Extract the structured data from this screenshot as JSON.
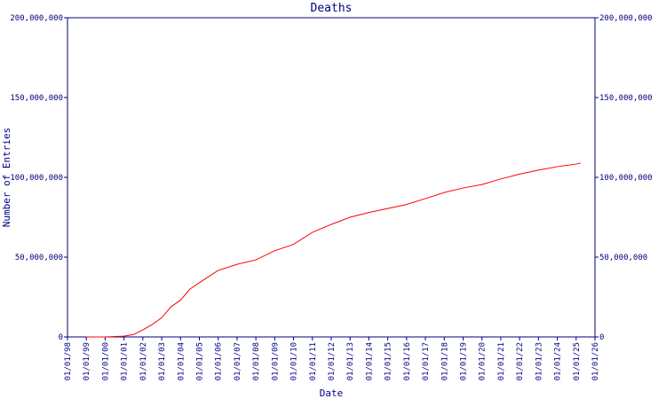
{
  "chart_data": {
    "type": "line",
    "title": "Deaths",
    "xlabel": "Date",
    "ylabel": "Number of Entries",
    "xlim": [
      "01/01/98",
      "01/01/26"
    ],
    "xticks": [
      "01/01/98",
      "01/01/99",
      "01/01/00",
      "01/01/01",
      "01/01/02",
      "01/01/03",
      "01/01/04",
      "01/01/05",
      "01/01/06",
      "01/01/07",
      "01/01/08",
      "01/01/09",
      "01/01/10",
      "01/01/11",
      "01/01/12",
      "01/01/13",
      "01/01/14",
      "01/01/15",
      "01/01/16",
      "01/01/17",
      "01/01/18",
      "01/01/19",
      "01/01/20",
      "01/01/21",
      "01/01/22",
      "01/01/23",
      "01/01/24",
      "01/01/25",
      "01/01/26"
    ],
    "ylim": [
      0,
      200000000
    ],
    "yticks": [
      0,
      {
        "value": 50000000,
        "label": "50,000,000"
      },
      {
        "value": 100000000,
        "label": "100,000,000"
      },
      {
        "value": 150000000,
        "label": "150,000,000"
      },
      {
        "value": 200000000,
        "label": "200,000,000"
      }
    ],
    "y2lim": [
      0,
      200000000
    ],
    "y2ticks": [
      0,
      {
        "value": 50000000,
        "label": "50,000,000"
      },
      {
        "value": 100000000,
        "label": "100,000,000"
      },
      {
        "value": 150000000,
        "label": "150,000,000"
      },
      {
        "value": 200000000,
        "label": "200,000,000"
      }
    ],
    "x": [
      "01/01/99",
      "01/01/00",
      "01/01/01",
      "07/01/01",
      "01/01/02",
      "07/01/02",
      "01/01/03",
      "07/01/03",
      "01/01/04",
      "07/01/04",
      "01/01/05",
      "01/01/06",
      "01/01/07",
      "01/01/08",
      "01/01/09",
      "01/01/10",
      "01/01/11",
      "01/01/12",
      "01/01/13",
      "01/01/14",
      "01/01/15",
      "01/01/16",
      "01/01/17",
      "01/01/18",
      "01/01/19",
      "01/01/20",
      "01/01/21",
      "01/01/22",
      "01/01/23",
      "01/01/24",
      "01/01/25",
      "04/01/25"
    ],
    "series": [
      {
        "name": "Deaths",
        "color": "#ff0000",
        "values": [
          0,
          0,
          500000,
          1500000,
          4400000,
          7800000,
          12000000,
          19000000,
          23000000,
          30000000,
          34000000,
          41700000,
          45500000,
          48300000,
          54000000,
          58000000,
          65500000,
          70500000,
          75000000,
          78000000,
          80500000,
          83000000,
          86700000,
          90500000,
          93300000,
          95500000,
          99000000,
          102000000,
          104500000,
          106700000,
          108300000,
          109000000
        ]
      }
    ]
  }
}
